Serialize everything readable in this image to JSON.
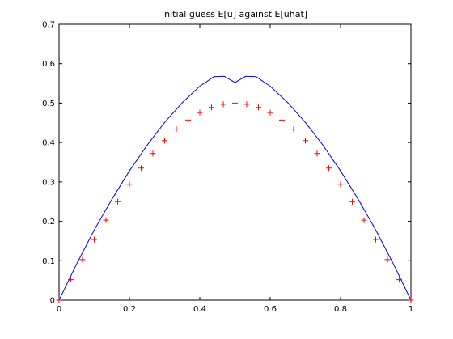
{
  "chart_data": {
    "type": "line",
    "title": "Initial guess E[u] against E[uhat]",
    "xlabel": "",
    "ylabel": "",
    "xlim": [
      0,
      1
    ],
    "ylim": [
      0,
      0.7
    ],
    "x_ticks": [
      0,
      0.2,
      0.4,
      0.6,
      0.8,
      1
    ],
    "y_ticks": [
      0,
      0.1,
      0.2,
      0.3,
      0.4,
      0.5,
      0.6,
      0.7
    ],
    "x_tick_labels": [
      "0",
      "0.2",
      "0.4",
      "0.6",
      "0.8",
      "1"
    ],
    "y_tick_labels": [
      "0",
      "0.1",
      "0.2",
      "0.3",
      "0.4",
      "0.5",
      "0.6",
      "0.7"
    ],
    "grid": false,
    "legend": "none",
    "series": [
      {
        "style": "line",
        "color": "#0000ff",
        "x": [
          0,
          0.05,
          0.1,
          0.15,
          0.2,
          0.25,
          0.3,
          0.35,
          0.4,
          0.44,
          0.47,
          0.5,
          0.53,
          0.56,
          0.6,
          0.65,
          0.7,
          0.75,
          0.8,
          0.85,
          0.9,
          0.95,
          1
        ],
        "y": [
          0,
          0.092,
          0.178,
          0.256,
          0.328,
          0.393,
          0.451,
          0.501,
          0.543,
          0.567,
          0.568,
          0.552,
          0.568,
          0.567,
          0.543,
          0.501,
          0.451,
          0.393,
          0.328,
          0.256,
          0.178,
          0.092,
          0
        ]
      },
      {
        "style": "marker-plus",
        "color": "#ff0000",
        "x": [
          0,
          0.0333,
          0.0667,
          0.1,
          0.1333,
          0.1667,
          0.2,
          0.2333,
          0.2667,
          0.3,
          0.3333,
          0.3667,
          0.4,
          0.4333,
          0.4667,
          0.5,
          0.5333,
          0.5667,
          0.6,
          0.6333,
          0.6667,
          0.7,
          0.7333,
          0.7667,
          0.8,
          0.8333,
          0.8667,
          0.9,
          0.9333,
          0.9667,
          1
        ],
        "y": [
          0,
          0.052,
          0.103,
          0.154,
          0.203,
          0.25,
          0.294,
          0.335,
          0.372,
          0.405,
          0.434,
          0.457,
          0.476,
          0.489,
          0.497,
          0.5,
          0.497,
          0.489,
          0.476,
          0.457,
          0.434,
          0.405,
          0.372,
          0.335,
          0.294,
          0.25,
          0.203,
          0.154,
          0.103,
          0.052,
          0
        ]
      }
    ]
  }
}
